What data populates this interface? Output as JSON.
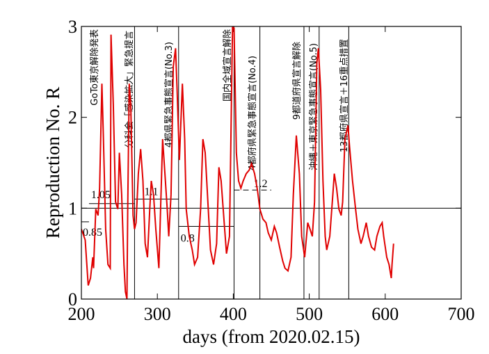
{
  "chart_data": {
    "type": "line",
    "xlabel": "days   (from 2020.02.15)",
    "ylabel": "Reproduction No.  R",
    "xlim": [
      200,
      700
    ],
    "xticks": [
      200,
      300,
      400,
      500,
      600,
      700
    ],
    "ylim": [
      0,
      3
    ],
    "yticks": [
      0,
      1,
      2,
      3
    ],
    "reference_line": 1,
    "vlines": [
      270,
      328,
      401,
      435,
      493,
      513,
      552
    ],
    "annotations": [
      "GoTo東京解除発表",
      "分科会「感染拡大」緊急提言",
      "4都県緊急事態宣言(No.3)",
      "国内全域宣言解除",
      "4都府県緊急事態宣言(No.4)",
      "9都道府県宣言解除",
      "沖縄＋東京緊急事態宣言(No.5)",
      "13都府県宣言＋16重点措置"
    ],
    "segments": [
      {
        "value": 0.85,
        "x": [
          200,
          210
        ],
        "style": "solid"
      },
      {
        "value": 1.05,
        "x": [
          210,
          270
        ],
        "style": "solid"
      },
      {
        "value": 1.1,
        "x": [
          270,
          328
        ],
        "style": "solid"
      },
      {
        "value": 0.8,
        "x": [
          328,
          401
        ],
        "style": "solid"
      },
      {
        "value": 1.2,
        "x": [
          401,
          450
        ],
        "style": "dashed"
      }
    ],
    "series": [
      {
        "color": "#e00000",
        "x": [
          200,
          205,
          209,
          212,
          215,
          216,
          219,
          222,
          224,
          227,
          229,
          232,
          235,
          238,
          239,
          242,
          245,
          248,
          250,
          253,
          256,
          258,
          260,
          261,
          263,
          265,
          268,
          270,
          272,
          275,
          278,
          281,
          284,
          287,
          290,
          292,
          295,
          298,
          302,
          304,
          307,
          310,
          313,
          315,
          318,
          321,
          324,
          326,
          329,
          333,
          336,
          338,
          342,
          346,
          349,
          353,
          357,
          360,
          363,
          367,
          370,
          374,
          378,
          381,
          384,
          388,
          391,
          395,
          399,
          401,
          404,
          407,
          410,
          413,
          417,
          421,
          424,
          428,
          432,
          435,
          439,
          443,
          446,
          450,
          454,
          457,
          461,
          465,
          468,
          472,
          476,
          479,
          483,
          487,
          490,
          494,
          498,
          501,
          504,
          507,
          510,
          512,
          515,
          518,
          521,
          523,
          527,
          531,
          533,
          536,
          539,
          542,
          544,
          547,
          551,
          553,
          557,
          561,
          564,
          568,
          571,
          575,
          578,
          582,
          586,
          589,
          593,
          596,
          598,
          602,
          605,
          608,
          609,
          611
        ],
        "values": [
          0.77,
          0.65,
          0.15,
          0.23,
          0.46,
          0.34,
          0.99,
          0.92,
          1.22,
          2.37,
          1.76,
          0.77,
          0.38,
          0.34,
          2.91,
          2.14,
          1.07,
          0.99,
          1.61,
          1.15,
          0.38,
          0.08,
          0,
          0.99,
          2.37,
          2.14,
          0.92,
          0.77,
          0.84,
          1.38,
          1.65,
          1.3,
          0.61,
          0.46,
          0.99,
          1.3,
          1.15,
          0.77,
          0.34,
          0.92,
          1.76,
          1.38,
          0.99,
          0.69,
          1.15,
          2.56,
          2.76,
          2.3,
          1.53,
          2.37,
          1.76,
          0.99,
          0.69,
          0.54,
          0.38,
          0.46,
          0.99,
          1.76,
          1.61,
          0.99,
          0.54,
          0.38,
          0.61,
          1.45,
          1.3,
          0.84,
          0.5,
          0.69,
          3,
          2.98,
          1.61,
          1.3,
          1.22,
          1.3,
          1.38,
          1.42,
          1.49,
          1.38,
          1.19,
          0.99,
          0.88,
          0.84,
          0.73,
          0.65,
          0.8,
          0.73,
          0.57,
          0.42,
          0.34,
          0.31,
          0.46,
          1.15,
          1.8,
          1.38,
          0.69,
          0.46,
          0.84,
          0.77,
          0.69,
          1.07,
          2.6,
          2.76,
          2.3,
          1.3,
          0.69,
          0.54,
          0.69,
          1.15,
          1.38,
          1.22,
          0.99,
          0.92,
          1.07,
          1.76,
          1.91,
          1.68,
          1.3,
          0.99,
          0.77,
          0.61,
          0.69,
          0.84,
          0.69,
          0.57,
          0.54,
          0.69,
          0.8,
          0.84,
          0.69,
          0.46,
          0.38,
          0.23,
          0.38,
          0.61
        ]
      }
    ]
  }
}
